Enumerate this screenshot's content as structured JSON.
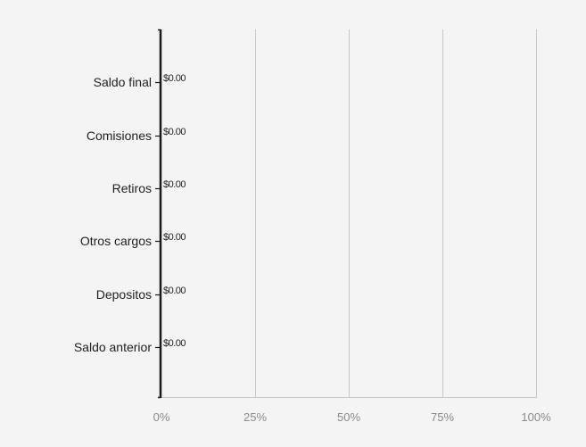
{
  "chart_data": {
    "type": "bar",
    "orientation": "horizontal",
    "categories": [
      "Saldo final",
      "Comisiones",
      "Retiros",
      "Otros cargos",
      "Depositos",
      "Saldo anterior"
    ],
    "values": [
      0,
      0,
      0,
      0,
      0,
      0
    ],
    "data_labels": [
      "$0.00",
      "$0.00",
      "$0.00",
      "$0.00",
      "$0.00",
      "$0.00"
    ],
    "x_ticks": [
      "0%",
      "25%",
      "50%",
      "75%",
      "100%"
    ],
    "x_tick_values": [
      0,
      25,
      50,
      75,
      100
    ],
    "xlim": [
      0,
      100
    ],
    "grid": true,
    "legend": "none",
    "title": "",
    "xlabel": "",
    "ylabel": "",
    "colors": {
      "background": "#f4f4f4",
      "gridline": "#c8c8c8",
      "axis": "#1a1a1a",
      "x_axis": "#c8c8c8",
      "category_label": "#1f1f1f",
      "tick_label": "#8a8a8a",
      "data_label": "#1f1f1f"
    }
  }
}
